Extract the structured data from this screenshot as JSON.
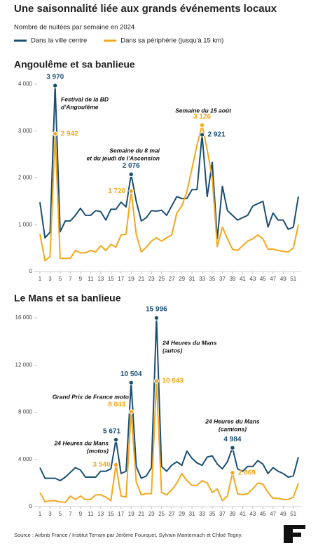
{
  "title": "Une saisonnalité liée aux grands événements locaux",
  "subtitle": "Nombre de nuitées par semaine en 2024",
  "source": "Source : Airbnb France / Institut Terram par Jérôme Fourquet, Sylvain Manternach et Chloé Tegny.",
  "chart_data": [
    {
      "type": "line",
      "title": "Angoulême et sa banlieue",
      "x": [
        1,
        2,
        3,
        4,
        5,
        6,
        7,
        8,
        9,
        10,
        11,
        12,
        13,
        14,
        15,
        16,
        17,
        18,
        19,
        20,
        21,
        22,
        23,
        24,
        25,
        26,
        27,
        28,
        29,
        30,
        31,
        32,
        33,
        34,
        35,
        36,
        37,
        38,
        39,
        40,
        41,
        42,
        43,
        44,
        45,
        46,
        47,
        48,
        49,
        50,
        51,
        52
      ],
      "xlim": [
        1,
        52
      ],
      "xticks": [
        1,
        3,
        5,
        7,
        9,
        11,
        13,
        15,
        17,
        19,
        21,
        23,
        25,
        27,
        29,
        31,
        33,
        35,
        37,
        39,
        41,
        43,
        45,
        47,
        49,
        51
      ],
      "ylim": [
        0,
        4000
      ],
      "yticks": [
        0,
        {
          "value": 1000,
          "label": "1 000"
        },
        {
          "value": 2000,
          "label": "2 000"
        },
        {
          "value": 3000,
          "label": "3 000"
        },
        {
          "value": 4000,
          "label": "4 000"
        }
      ],
      "grid": false,
      "series": [
        {
          "name": "Dans la ville centre",
          "color": "#1b4f72",
          "values": [
            1480,
            720,
            840,
            3970,
            850,
            1080,
            1080,
            1200,
            1350,
            1200,
            1200,
            1300,
            1280,
            1100,
            1330,
            1330,
            1480,
            1380,
            2076,
            1500,
            1080,
            1150,
            1300,
            1290,
            1310,
            1200,
            1400,
            1600,
            1560,
            1560,
            1750,
            1750,
            2921,
            1600,
            2330,
            700,
            1820,
            1300,
            1200,
            1100,
            1150,
            1200,
            1400,
            1450,
            1500,
            950,
            1250,
            1100,
            1100,
            900,
            950,
            1600
          ],
          "value_labels": [
            null,
            null,
            null,
            "3 970",
            null,
            null,
            null,
            null,
            null,
            null,
            null,
            null,
            null,
            null,
            null,
            null,
            null,
            null,
            "2 076",
            null,
            null,
            null,
            null,
            null,
            null,
            null,
            null,
            null,
            null,
            null,
            null,
            null,
            "2 921",
            null,
            null,
            null,
            null,
            null,
            null,
            null,
            null,
            null,
            null,
            null,
            null,
            null,
            null,
            null,
            null,
            null,
            null,
            null
          ]
        },
        {
          "name": "Dans sa périphérie (jusqu'à 15 km)",
          "color": "#f2a81d",
          "values": [
            800,
            230,
            320,
            2942,
            280,
            280,
            280,
            450,
            400,
            400,
            450,
            420,
            550,
            450,
            580,
            520,
            780,
            800,
            1720,
            800,
            420,
            520,
            650,
            720,
            650,
            720,
            780,
            1250,
            1400,
            1700,
            2200,
            2700,
            3126,
            2600,
            2000,
            530,
            950,
            700,
            480,
            450,
            550,
            650,
            700,
            780,
            700,
            480,
            480,
            450,
            430,
            420,
            500,
            1000
          ],
          "value_labels": [
            null,
            null,
            null,
            "2 942",
            null,
            null,
            null,
            null,
            null,
            null,
            null,
            null,
            null,
            null,
            null,
            null,
            null,
            null,
            "1 720",
            null,
            null,
            null,
            null,
            null,
            null,
            null,
            null,
            null,
            null,
            null,
            null,
            null,
            "3 126",
            null,
            null,
            null,
            null,
            null,
            null,
            null,
            null,
            null,
            null,
            null,
            null,
            null,
            null,
            null,
            null,
            null,
            null,
            null
          ]
        }
      ],
      "annotations": [
        {
          "lines": [
            "Festival de la BD",
            "d'Angoulême"
          ]
        },
        {
          "lines": [
            "Semaine du 8 mai",
            "et du jeudi de l'Ascension"
          ]
        },
        {
          "lines": [
            "Semaine du 15 août"
          ]
        }
      ]
    },
    {
      "type": "line",
      "title": "Le Mans et sa banlieue",
      "x": [
        1,
        2,
        3,
        4,
        5,
        6,
        7,
        8,
        9,
        10,
        11,
        12,
        13,
        14,
        15,
        16,
        17,
        18,
        19,
        20,
        21,
        22,
        23,
        24,
        25,
        26,
        27,
        28,
        29,
        30,
        31,
        32,
        33,
        34,
        35,
        36,
        37,
        38,
        39,
        40,
        41,
        42,
        43,
        44,
        45,
        46,
        47,
        48,
        49,
        50,
        51,
        52
      ],
      "xlim": [
        1,
        52
      ],
      "xticks": [
        1,
        3,
        5,
        7,
        9,
        11,
        13,
        15,
        17,
        19,
        21,
        23,
        25,
        27,
        29,
        31,
        33,
        35,
        37,
        39,
        41,
        43,
        45,
        47,
        49,
        51
      ],
      "ylim": [
        0,
        16000
      ],
      "yticks": [
        0,
        {
          "value": 4000,
          "label": "4 000"
        },
        {
          "value": 8000,
          "label": "8 000"
        },
        {
          "value": 12000,
          "label": "12 000"
        },
        {
          "value": 16000,
          "label": "16 000"
        }
      ],
      "grid": false,
      "series": [
        {
          "color": "#1b4f72",
          "values": [
            3300,
            2400,
            2400,
            2400,
            2200,
            2500,
            2900,
            3300,
            3100,
            2500,
            2500,
            2500,
            3000,
            3000,
            3200,
            5671,
            2800,
            3000,
            10504,
            3400,
            2400,
            2600,
            3300,
            15996,
            3400,
            3000,
            3500,
            3800,
            3500,
            4700,
            4100,
            3700,
            3500,
            4200,
            4300,
            3600,
            3200,
            3800,
            4984,
            3200,
            3000,
            3400,
            3400,
            3900,
            3600,
            2800,
            3300,
            3000,
            2800,
            2500,
            2600,
            4200
          ],
          "value_labels": [
            null,
            null,
            null,
            null,
            null,
            null,
            null,
            null,
            null,
            null,
            null,
            null,
            null,
            null,
            null,
            "5 671",
            null,
            null,
            "10 504",
            null,
            null,
            null,
            null,
            "15 996",
            null,
            null,
            null,
            null,
            null,
            null,
            null,
            null,
            null,
            null,
            null,
            null,
            null,
            null,
            "4 984",
            null,
            null,
            null,
            null,
            null,
            null,
            null,
            null,
            null,
            null,
            null,
            null,
            null
          ]
        },
        {
          "color": "#f2a81d",
          "values": [
            1200,
            400,
            500,
            500,
            400,
            350,
            900,
            600,
            900,
            600,
            600,
            1000,
            1000,
            800,
            500,
            3540,
            900,
            800,
            8043,
            2100,
            1000,
            1100,
            1100,
            10643,
            1200,
            1000,
            1400,
            2000,
            2800,
            2200,
            1800,
            1800,
            2200,
            2000,
            1200,
            1500,
            500,
            900,
            2869,
            1100,
            1000,
            1100,
            1500,
            2000,
            1900,
            1200,
            700,
            700,
            600,
            600,
            800,
            2000
          ],
          "value_labels": [
            null,
            null,
            null,
            null,
            null,
            null,
            null,
            null,
            null,
            null,
            null,
            null,
            null,
            null,
            null,
            "3 540",
            null,
            null,
            "8 043",
            null,
            null,
            null,
            null,
            "10 643",
            null,
            null,
            null,
            null,
            null,
            null,
            null,
            null,
            null,
            null,
            null,
            null,
            null,
            null,
            "2 869",
            null,
            null,
            null,
            null,
            null,
            null,
            null,
            null,
            null,
            null,
            null,
            null,
            null
          ]
        }
      ],
      "annotations": [
        {
          "lines": [
            "24 Heures du Mans",
            "(autos)"
          ]
        },
        {
          "lines": [
            "Grand Prix de France moto"
          ]
        },
        {
          "lines": [
            "24 Heures du Mans",
            "(motos)"
          ]
        },
        {
          "lines": [
            "24 Heures du Mans",
            "(camions)"
          ]
        }
      ]
    }
  ]
}
